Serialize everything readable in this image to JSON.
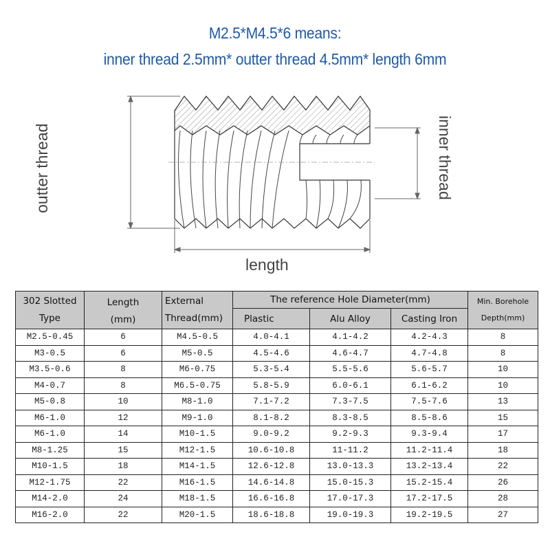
{
  "heading": {
    "line1": "M2.5*M4.5*6 means:",
    "line2": "inner thread 2.5mm* outter thread 4.5mm* length 6mm",
    "color": "#1f5aa8"
  },
  "diagram": {
    "outer_label": "outter thread",
    "inner_label": "inner thread",
    "length_label": "length"
  },
  "table": {
    "headers": {
      "type": "302 Slotted Type",
      "type_line1": "302 Slotted",
      "type_line2": "Type",
      "length_line1": "Length",
      "length_line2": "(mm)",
      "external_line1": "External",
      "external_line2": "Thread(mm)",
      "group": "The reference Hole Diameter(mm)",
      "plastic": "Plastic",
      "alu": "Alu Alloy",
      "iron": "Casting Iron",
      "depth_line1": "Min. Borehole",
      "depth_line2": "Depth(mm)"
    },
    "rows": [
      {
        "type": "M2.5-0.45",
        "length": "6",
        "external": "M4.5-0.5",
        "plastic": "4.0-4.1",
        "alu": "4.1-4.2",
        "iron": "4.2-4.3",
        "depth": "8"
      },
      {
        "type": "M3-0.5",
        "length": "6",
        "external": "M5-0.5",
        "plastic": "4.5-4.6",
        "alu": "4.6-4.7",
        "iron": "4.7-4.8",
        "depth": "8"
      },
      {
        "type": "M3.5-0.6",
        "length": "8",
        "external": "M6-0.75",
        "plastic": "5.3-5.4",
        "alu": "5.5-5.6",
        "iron": "5.6-5.7",
        "depth": "10"
      },
      {
        "type": "M4-0.7",
        "length": "8",
        "external": "M6.5-0.75",
        "plastic": "5.8-5.9",
        "alu": "6.0-6.1",
        "iron": "6.1-6.2",
        "depth": "10"
      },
      {
        "type": "M5-0.8",
        "length": "10",
        "external": "M8-1.0",
        "plastic": "7.1-7.2",
        "alu": "7.3-7.5",
        "iron": "7.5-7.6",
        "depth": "13"
      },
      {
        "type": "M6-1.0",
        "length": "12",
        "external": "M9-1.0",
        "plastic": "8.1-8.2",
        "alu": "8.3-8.5",
        "iron": "8.5-8.6",
        "depth": "15"
      },
      {
        "type": "M6-1.0",
        "length": "14",
        "external": "M10-1.5",
        "plastic": "9.0-9.2",
        "alu": "9.2-9.3",
        "iron": "9.3-9.4",
        "depth": "17"
      },
      {
        "type": "M8-1.25",
        "length": "15",
        "external": "M12-1.5",
        "plastic": "10.6-10.8",
        "alu": "11-11.2",
        "iron": "11.2-11.4",
        "depth": "18"
      },
      {
        "type": "M10-1.5",
        "length": "18",
        "external": "M14-1.5",
        "plastic": "12.6-12.8",
        "alu": "13.0-13.3",
        "iron": "13.2-13.4",
        "depth": "22"
      },
      {
        "type": "M12-1.75",
        "length": "22",
        "external": "M16-1.5",
        "plastic": "14.6-14.8",
        "alu": "15.0-15.3",
        "iron": "15.2-15.4",
        "depth": "26"
      },
      {
        "type": "M14-2.0",
        "length": "24",
        "external": "M18-1.5",
        "plastic": "16.6-16.8",
        "alu": "17.0-17.3",
        "iron": "17.2-17.5",
        "depth": "28"
      },
      {
        "type": "M16-2.0",
        "length": "22",
        "external": "M20-1.5",
        "plastic": "18.6-18.8",
        "alu": "19.0-19.3",
        "iron": "19.2-19.5",
        "depth": "27"
      }
    ]
  }
}
